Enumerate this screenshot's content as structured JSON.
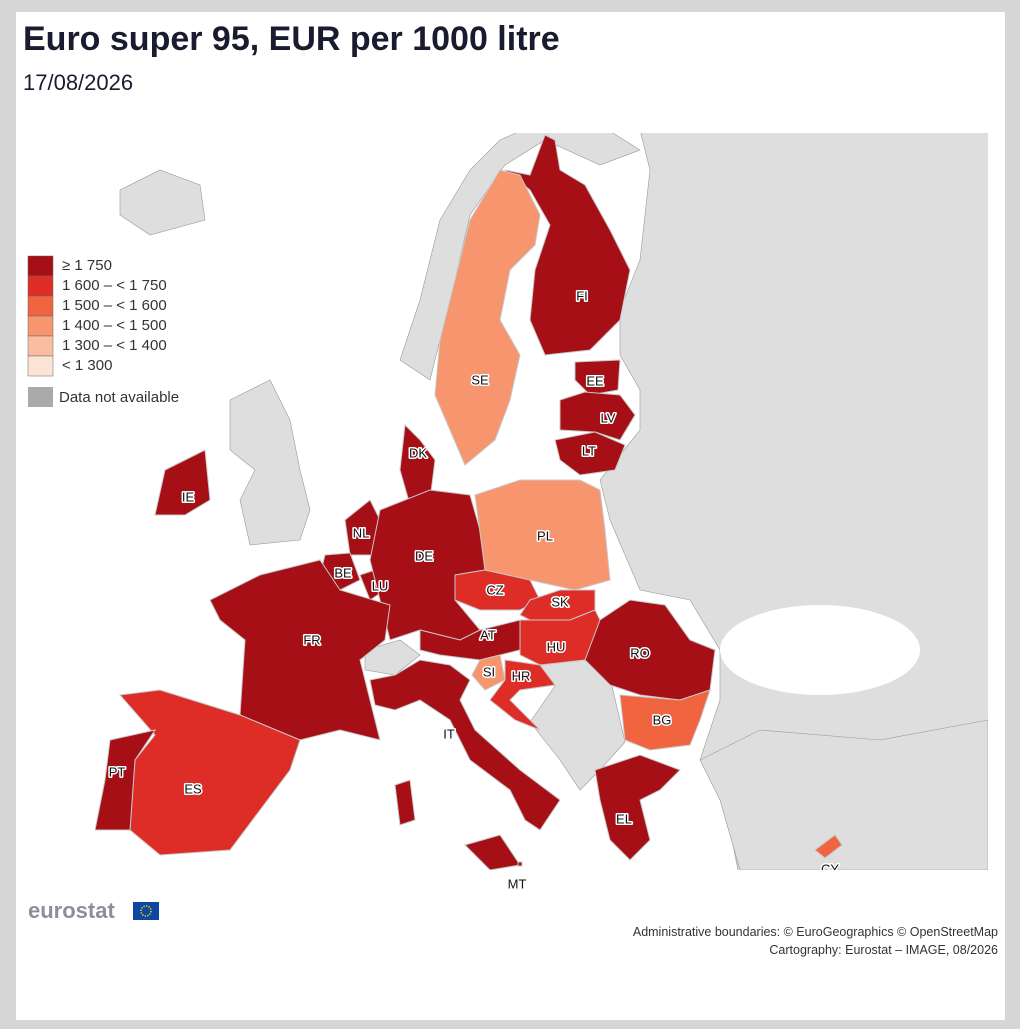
{
  "header": {
    "title": "Euro super 95, EUR per 1000 litre",
    "date": "17/08/2026"
  },
  "legend": {
    "classes": [
      {
        "label": "≥ 1 750",
        "color": "#a50f15"
      },
      {
        "label": "1 600 – < 1 750",
        "color": "#de2d26"
      },
      {
        "label": "1 500 – < 1 600",
        "color": "#f0653f"
      },
      {
        "label": "1 400 – < 1 500",
        "color": "#f7956e"
      },
      {
        "label": "1 300 – < 1 400",
        "color": "#fbbda1"
      },
      {
        "label": "< 1 300",
        "color": "#fde3d6"
      }
    ],
    "not_available": {
      "label": "Data not available",
      "color": "#aaaaaa"
    }
  },
  "countries": [
    {
      "code": "FI",
      "class": 0
    },
    {
      "code": "SE",
      "class": 3
    },
    {
      "code": "EE",
      "class": 0
    },
    {
      "code": "LV",
      "class": 0
    },
    {
      "code": "LT",
      "class": 0
    },
    {
      "code": "DK",
      "class": 0
    },
    {
      "code": "IE",
      "class": 0
    },
    {
      "code": "NL",
      "class": 0
    },
    {
      "code": "BE",
      "class": 0
    },
    {
      "code": "LU",
      "class": 0
    },
    {
      "code": "DE",
      "class": 0
    },
    {
      "code": "PL",
      "class": 3
    },
    {
      "code": "CZ",
      "class": 1
    },
    {
      "code": "SK",
      "class": 1
    },
    {
      "code": "AT",
      "class": 0
    },
    {
      "code": "HU",
      "class": 1
    },
    {
      "code": "SI",
      "class": 3
    },
    {
      "code": "HR",
      "class": 1
    },
    {
      "code": "RO",
      "class": 0
    },
    {
      "code": "BG",
      "class": 2
    },
    {
      "code": "FR",
      "class": 0
    },
    {
      "code": "ES",
      "class": 1
    },
    {
      "code": "PT",
      "class": 0
    },
    {
      "code": "IT",
      "class": 0
    },
    {
      "code": "EL",
      "class": 0
    },
    {
      "code": "MT",
      "class": 0
    },
    {
      "code": "CY",
      "class": 2
    }
  ],
  "logo": "eurostat",
  "credits": [
    "Administrative boundaries: © EuroGeographics © OpenStreetMap",
    "Cartography: Eurostat – IMAGE, 08/2026"
  ]
}
